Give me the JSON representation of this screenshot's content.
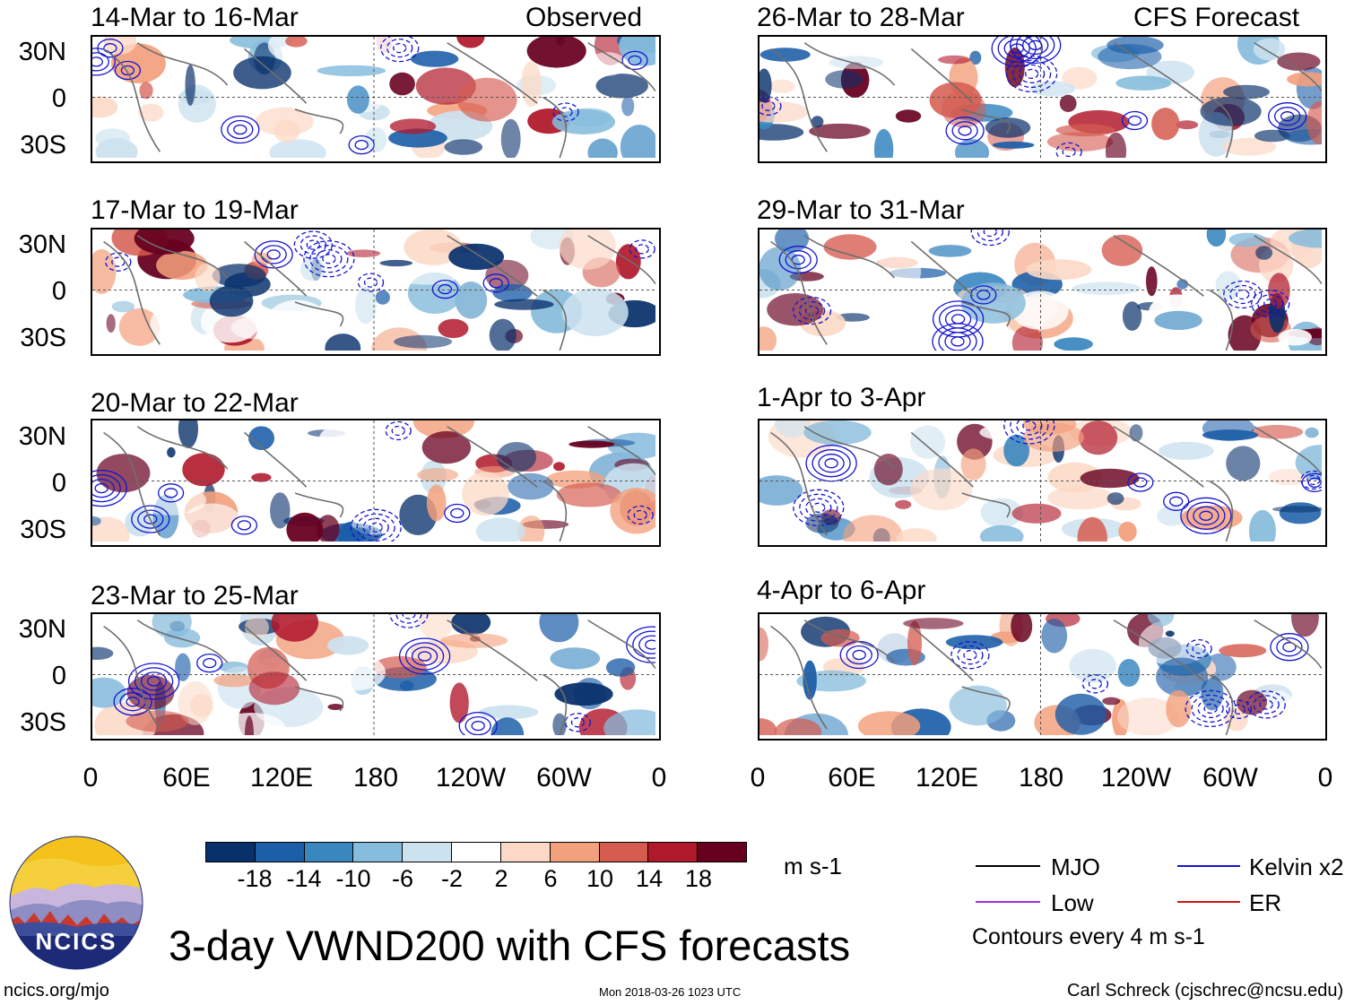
{
  "header": {
    "observed_label": "Observed",
    "forecast_label": "CFS Forecast"
  },
  "panels": {
    "left": [
      {
        "title": "14-Mar to 16-Mar"
      },
      {
        "title": "17-Mar to 19-Mar"
      },
      {
        "title": "20-Mar to 22-Mar"
      },
      {
        "title": "23-Mar to 25-Mar"
      }
    ],
    "right": [
      {
        "title": "26-Mar to 28-Mar"
      },
      {
        "title": "29-Mar to 31-Mar"
      },
      {
        "title": "1-Apr to 3-Apr"
      },
      {
        "title": "4-Apr to 6-Apr"
      }
    ]
  },
  "axes": {
    "y_labels": [
      "30N",
      "0",
      "30S"
    ],
    "x_labels": [
      "0",
      "60E",
      "120E",
      "180",
      "120W",
      "60W",
      "0"
    ]
  },
  "colorbar": {
    "ticks": [
      "-18",
      "-14",
      "-10",
      "-6",
      "-2",
      "2",
      "6",
      "10",
      "14",
      "18"
    ],
    "colors": [
      "#08306b",
      "#1c5ea8",
      "#3a87c0",
      "#86bcdc",
      "#cce2ef",
      "#ffffff",
      "#fcd9c6",
      "#f3a07c",
      "#d55b4f",
      "#b0182b",
      "#67001f"
    ],
    "units": "m s-1"
  },
  "legend": {
    "mjo": "MJO",
    "kelvin": "Kelvin x2",
    "low": "Low",
    "er": "ER",
    "contours_note": "Contours every 4 m s-1",
    "colors": {
      "mjo": "#000000",
      "kelvin": "#1414d2",
      "low": "#a030d8",
      "er": "#d21414"
    }
  },
  "branding": {
    "logo_text": "NCICS",
    "main_title": "3-day VWND200 with CFS forecasts",
    "url": "ncics.org/mjo",
    "timestamp": "Mon 2018-03-26 1023 UTC",
    "author": "Carl Schreck (cjschrec@ncsu.edu)"
  }
}
